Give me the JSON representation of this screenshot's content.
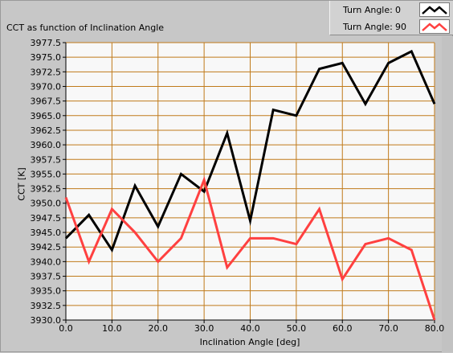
{
  "chart_data": {
    "type": "line",
    "title": "CCT as function of Inclination Angle",
    "xlabel": "Inclination Angle [deg]",
    "ylabel": "CCT [K]",
    "xlim": [
      0,
      80
    ],
    "ylim": [
      3930,
      3977.5
    ],
    "xticks": [
      0,
      10,
      20,
      30,
      40,
      50,
      60,
      70,
      80
    ],
    "xtick_labels": [
      "0.0",
      "10.0",
      "20.0",
      "30.0",
      "40.0",
      "50.0",
      "60.0",
      "70.0",
      "80.0"
    ],
    "yticks": [
      3930,
      3932.5,
      3935,
      3937.5,
      3940,
      3942.5,
      3945,
      3947.5,
      3950,
      3952.5,
      3955,
      3957.5,
      3960,
      3962.5,
      3965,
      3967.5,
      3970,
      3972.5,
      3975,
      3977.5
    ],
    "ytick_labels": [
      "3930.0",
      "3932.5",
      "3935.0",
      "3937.5",
      "3940.0",
      "3942.5",
      "3945.0",
      "3947.5",
      "3950.0",
      "3952.5",
      "3955.0",
      "3957.5",
      "3960.0",
      "3962.5",
      "3965.0",
      "3967.5",
      "3970.0",
      "3972.5",
      "3975.0",
      "3977.5"
    ],
    "x": [
      0,
      5,
      10,
      15,
      20,
      25,
      30,
      35,
      40,
      45,
      50,
      55,
      60,
      65,
      70,
      75,
      80
    ],
    "grid": true,
    "series": [
      {
        "name": "Turn Angle:",
        "turn_value": "0",
        "color": "#000000",
        "values": [
          3944,
          3948,
          3942,
          3953,
          3946,
          3955,
          3952,
          3962,
          3947,
          3966,
          3965,
          3973,
          3974,
          3967,
          3974,
          3976,
          3967
        ]
      },
      {
        "name": "Turn Angle:",
        "turn_value": "90",
        "color": "#ff4040",
        "values": [
          3951,
          3940,
          3949,
          3945,
          3940,
          3944,
          3954,
          3939,
          3944,
          3944,
          3943,
          3949,
          3937,
          3943,
          3944,
          3942,
          3930
        ]
      }
    ],
    "legend_position": "top-right"
  },
  "colors": {
    "panel_bg": "#c7c7c7",
    "plot_bg": "#f8f8f8",
    "grid": "#c07a1a",
    "axis": "#000000"
  }
}
